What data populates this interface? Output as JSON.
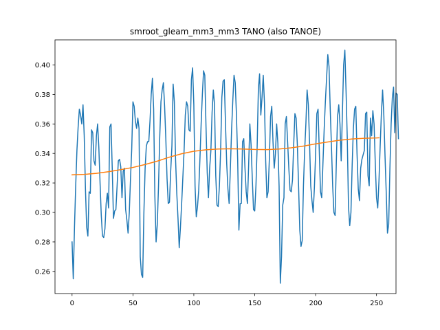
{
  "chart_data": {
    "type": "line",
    "title": "smroot_gleam_mm3_mm3 TANO (also TANOE)",
    "xlabel": "",
    "ylabel": "",
    "xlim": [
      -14,
      266
    ],
    "ylim": [
      0.245,
      0.417
    ],
    "xticks": [
      0,
      50,
      100,
      150,
      200,
      250
    ],
    "xtick_labels": [
      "0",
      "50",
      "100",
      "150",
      "200",
      "250"
    ],
    "yticks": [
      0.26,
      0.28,
      0.3,
      0.32,
      0.34,
      0.36,
      0.38,
      0.4
    ],
    "ytick_labels": [
      "0.26",
      "0.28",
      "0.30",
      "0.32",
      "0.34",
      "0.36",
      "0.38",
      "0.40"
    ],
    "grid": false,
    "colors": {
      "series_1": "#1f77b4",
      "series_2": "#ff7f0e"
    },
    "series": [
      {
        "values": [
          0.28,
          0.255,
          0.29,
          0.318,
          0.342,
          0.358,
          0.37,
          0.366,
          0.36,
          0.373,
          0.352,
          0.316,
          0.29,
          0.284,
          0.314,
          0.313,
          0.356,
          0.354,
          0.335,
          0.332,
          0.352,
          0.36,
          0.344,
          0.32,
          0.298,
          0.284,
          0.283,
          0.289,
          0.306,
          0.313,
          0.303,
          0.358,
          0.36,
          0.33,
          0.296,
          0.301,
          0.302,
          0.318,
          0.335,
          0.336,
          0.331,
          0.31,
          0.328,
          0.33,
          0.302,
          0.295,
          0.286,
          0.3,
          0.323,
          0.343,
          0.375,
          0.372,
          0.362,
          0.357,
          0.364,
          0.357,
          0.27,
          0.258,
          0.256,
          0.3,
          0.33,
          0.345,
          0.348,
          0.348,
          0.362,
          0.38,
          0.391,
          0.37,
          0.311,
          0.28,
          0.292,
          0.318,
          0.351,
          0.375,
          0.383,
          0.388,
          0.372,
          0.35,
          0.323,
          0.306,
          0.307,
          0.328,
          0.345,
          0.387,
          0.375,
          0.336,
          0.313,
          0.296,
          0.276,
          0.29,
          0.306,
          0.324,
          0.342,
          0.366,
          0.375,
          0.372,
          0.356,
          0.355,
          0.39,
          0.398,
          0.373,
          0.318,
          0.297,
          0.304,
          0.315,
          0.336,
          0.36,
          0.38,
          0.396,
          0.393,
          0.358,
          0.327,
          0.31,
          0.33,
          0.342,
          0.368,
          0.383,
          0.373,
          0.325,
          0.305,
          0.304,
          0.318,
          0.342,
          0.378,
          0.389,
          0.39,
          0.36,
          0.333,
          0.316,
          0.306,
          0.33,
          0.356,
          0.376,
          0.393,
          0.388,
          0.366,
          0.336,
          0.288,
          0.306,
          0.306,
          0.348,
          0.35,
          0.33,
          0.314,
          0.306,
          0.332,
          0.36,
          0.346,
          0.323,
          0.302,
          0.301,
          0.318,
          0.345,
          0.384,
          0.394,
          0.366,
          0.378,
          0.393,
          0.374,
          0.335,
          0.31,
          0.314,
          0.336,
          0.365,
          0.372,
          0.348,
          0.33,
          0.34,
          0.36,
          0.347,
          0.318,
          0.252,
          0.27,
          0.305,
          0.31,
          0.36,
          0.365,
          0.348,
          0.33,
          0.315,
          0.314,
          0.322,
          0.346,
          0.367,
          0.364,
          0.346,
          0.318,
          0.288,
          0.277,
          0.281,
          0.318,
          0.342,
          0.36,
          0.383,
          0.373,
          0.348,
          0.318,
          0.308,
          0.3,
          0.317,
          0.34,
          0.367,
          0.37,
          0.342,
          0.314,
          0.31,
          0.333,
          0.356,
          0.375,
          0.391,
          0.407,
          0.399,
          0.37,
          0.345,
          0.318,
          0.3,
          0.298,
          0.334,
          0.365,
          0.373,
          0.36,
          0.335,
          0.368,
          0.4,
          0.41,
          0.382,
          0.35,
          0.304,
          0.291,
          0.3,
          0.332,
          0.357,
          0.37,
          0.372,
          0.34,
          0.316,
          0.308,
          0.33,
          0.336,
          0.339,
          0.342,
          0.367,
          0.368,
          0.325,
          0.318,
          0.364,
          0.352,
          0.369,
          0.36,
          0.333,
          0.31,
          0.303,
          0.321,
          0.345,
          0.367,
          0.383,
          0.366,
          0.338,
          0.313,
          0.286,
          0.292,
          0.33,
          0.36,
          0.378,
          0.385,
          0.354,
          0.381,
          0.38,
          0.35
        ]
      },
      {
        "x": [
          0,
          10,
          20,
          30,
          40,
          50,
          60,
          70,
          80,
          90,
          100,
          110,
          120,
          130,
          140,
          150,
          160,
          170,
          180,
          190,
          200,
          210,
          220,
          230,
          240,
          250,
          252
        ],
        "values": [
          0.3255,
          0.3258,
          0.3265,
          0.3276,
          0.329,
          0.3305,
          0.3325,
          0.3348,
          0.3375,
          0.3398,
          0.3415,
          0.3425,
          0.343,
          0.3432,
          0.343,
          0.3427,
          0.3426,
          0.343,
          0.3438,
          0.345,
          0.3465,
          0.3478,
          0.349,
          0.3498,
          0.3503,
          0.3505,
          0.3506
        ]
      }
    ]
  }
}
